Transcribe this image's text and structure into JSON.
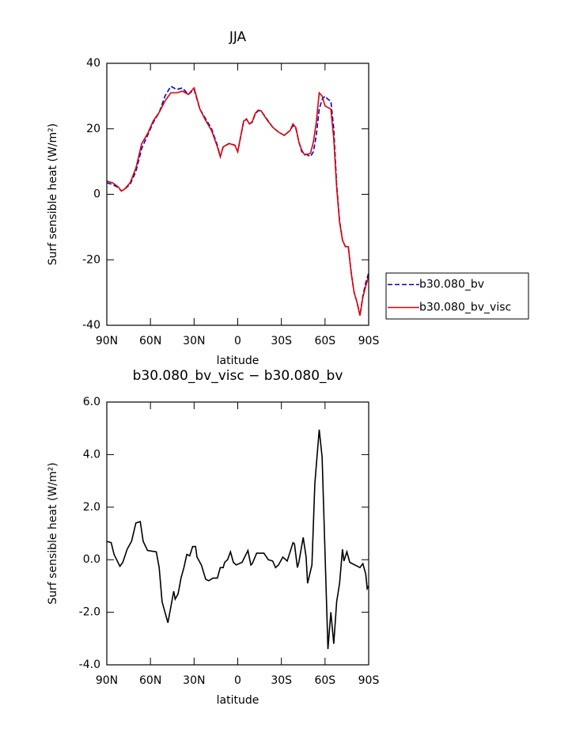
{
  "chart_data": [
    {
      "type": "line",
      "title": "JJA",
      "xlabel": "latitude",
      "ylabel": "Surf sensible heat (W/m²)",
      "x": [
        90,
        86,
        82,
        80,
        78,
        74,
        70,
        66,
        62,
        58,
        54,
        50,
        46,
        42,
        38,
        34,
        30,
        26,
        22,
        18,
        14,
        12,
        10,
        6,
        2,
        0,
        -4,
        -6,
        -8,
        -10,
        -12,
        -14,
        -16,
        -20,
        -24,
        -28,
        -32,
        -36,
        -38,
        -40,
        -42,
        -44,
        -46,
        -50,
        -52,
        -54,
        -56,
        -58,
        -60,
        -62,
        -64,
        -66,
        -68,
        -70,
        -72,
        -74,
        -76,
        -78,
        -80,
        -82,
        -84,
        -86,
        -88,
        -90
      ],
      "series": [
        {
          "name": "b30.080_bv",
          "color": "#0000cc",
          "dash": "dashed",
          "values": [
            3.5,
            3,
            2,
            1,
            1.5,
            3,
            7,
            14,
            18,
            22,
            25,
            30,
            33,
            32,
            32.5,
            30.5,
            32,
            26,
            23,
            20,
            15,
            11.5,
            14.5,
            15.5,
            15,
            13,
            22,
            23,
            21.5,
            22,
            24.5,
            25.5,
            25.5,
            23,
            20.5,
            19,
            18,
            19.5,
            21,
            20,
            16,
            13,
            12.5,
            11.5,
            13,
            18,
            26,
            29,
            30,
            29,
            28.5,
            20,
            3,
            -8,
            -14,
            -16,
            -16,
            -24,
            -30,
            -33,
            -37,
            -31,
            -27,
            -24
          ]
        },
        {
          "name": "b30.080_bv_visc",
          "color": "#e00000",
          "dash": "solid",
          "values": [
            4,
            3.5,
            2.2,
            1,
            1.5,
            3.5,
            8,
            15.5,
            18.5,
            22.5,
            25,
            28.5,
            31,
            31,
            31.5,
            30.5,
            32.5,
            26,
            22.5,
            19.5,
            14.5,
            11.5,
            14.5,
            15.5,
            15,
            13,
            22.3,
            23,
            21.5,
            22.2,
            24.7,
            25.7,
            25.5,
            22.8,
            20.5,
            19,
            18,
            19.5,
            21.5,
            20.3,
            16,
            13.5,
            12,
            12.5,
            16,
            22,
            31,
            30,
            27,
            26.5,
            26,
            17,
            2,
            -8.5,
            -14,
            -16,
            -16,
            -24,
            -30,
            -33,
            -37,
            -31.5,
            -28,
            -25
          ]
        }
      ],
      "xlim": [
        90,
        -90
      ],
      "xticks": [
        {
          "value": 90,
          "label": "90N"
        },
        {
          "value": 60,
          "label": "60N"
        },
        {
          "value": 30,
          "label": "30N"
        },
        0,
        {
          "value": -30,
          "label": "30S"
        },
        {
          "value": -60,
          "label": "60S"
        },
        {
          "value": -90,
          "label": "90S"
        }
      ],
      "ylim": [
        -40,
        40
      ],
      "yticks": [
        -40,
        -20,
        0,
        20,
        40
      ],
      "legend": "right"
    },
    {
      "type": "line",
      "title": "b30.080_bv_visc − b30.080_bv",
      "xlabel": "latitude",
      "ylabel": "Surf sensible heat (W/m²)",
      "x": [
        90,
        87,
        85,
        81,
        79,
        76,
        73,
        70,
        67,
        65,
        62,
        56,
        54,
        52,
        48,
        44,
        43,
        41,
        39,
        37,
        35,
        33,
        31,
        29,
        28,
        25,
        22,
        20,
        17,
        14,
        12,
        10,
        9,
        7,
        5,
        3,
        1,
        -3,
        -7,
        -9,
        -10,
        -13,
        -18,
        -21,
        -24,
        -26,
        -28,
        -31,
        -34,
        -38,
        -39,
        -41,
        -42,
        -45,
        -47,
        -48,
        -51,
        -53,
        -56,
        -58,
        -62,
        -64,
        -66,
        -68,
        -70,
        -72,
        -73,
        -75,
        -77,
        -84,
        -86,
        -88,
        -89,
        -90
      ],
      "values": [
        0.7,
        0.65,
        0.2,
        -0.25,
        -0.1,
        0.4,
        0.7,
        1.4,
        1.45,
        0.7,
        0.35,
        0.3,
        -0.3,
        -1.6,
        -2.4,
        -1.2,
        -1.5,
        -1.3,
        -0.7,
        -0.3,
        0.2,
        0.15,
        0.5,
        0.5,
        0.1,
        -0.2,
        -0.75,
        -0.8,
        -0.7,
        -0.7,
        -0.3,
        -0.3,
        -0.1,
        0,
        0.3,
        -0.1,
        -0.2,
        -0.1,
        0.35,
        -0.2,
        -0.15,
        0.25,
        0.25,
        0,
        -0.05,
        -0.3,
        -0.2,
        0.1,
        -0.05,
        0.65,
        0.6,
        -0.3,
        -0.1,
        0.85,
        0.1,
        -0.9,
        -0.2,
        2.9,
        4.95,
        3.9,
        -3.4,
        -2,
        -3.2,
        -1.6,
        -0.9,
        0.4,
        -0.05,
        0.3,
        -0.1,
        -0.3,
        -0.15,
        -0.55,
        -1.1,
        -1
      ],
      "color": "#000000",
      "xlim": [
        90,
        -90
      ],
      "xticks": [
        {
          "value": 90,
          "label": "90N"
        },
        {
          "value": 60,
          "label": "60N"
        },
        {
          "value": 30,
          "label": "30N"
        },
        0,
        {
          "value": -30,
          "label": "30S"
        },
        {
          "value": -60,
          "label": "60S"
        },
        {
          "value": -90,
          "label": "90S"
        }
      ],
      "ylim": [
        -4,
        6
      ],
      "yticks": [
        {
          "value": -4,
          "label": "-4.0"
        },
        {
          "value": -2,
          "label": "-2.0"
        },
        {
          "value": 0,
          "label": "0.0"
        },
        {
          "value": 2,
          "label": "2.0"
        },
        {
          "value": 4,
          "label": "4.0"
        },
        {
          "value": 6,
          "label": "6.0"
        }
      ]
    }
  ]
}
